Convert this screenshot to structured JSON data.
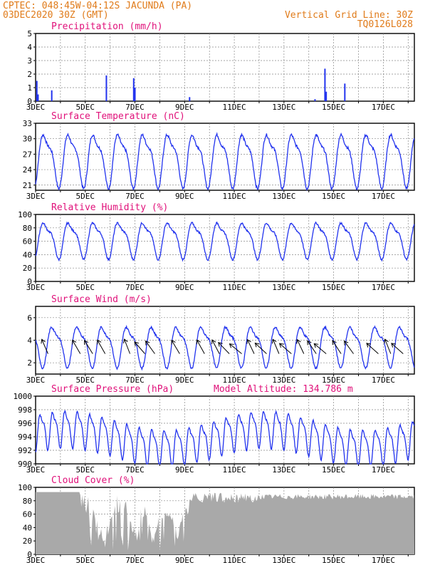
{
  "header": {
    "line1": "CPTEC:   048:45W-04:12S   JACUNDA (PA)",
    "line2": "03DEC2020 30Z (GMT)",
    "grid_note": "Vertical Grid Line: 30Z",
    "code": "TQ0126L028",
    "altitude": "Model Altitude: 134.786 m"
  },
  "colors": {
    "header": "#e07b1a",
    "title": "#e0117a",
    "line": "#2233ee",
    "cloud": "#a9a9a9",
    "arrow": "#000000"
  },
  "x_labels": [
    "3DEC",
    "5DEC",
    "7DEC",
    "9DEC",
    "11DEC",
    "13DEC",
    "15DEC",
    "17DEC"
  ],
  "chart_data": [
    {
      "type": "bar",
      "title": "Precipitation (mm/h)",
      "x_unit": "days since 3DEC",
      "ylim": [
        0,
        5
      ],
      "yticks": [
        "0",
        "1",
        "2",
        "3",
        "4",
        "5"
      ],
      "x": [
        0.05,
        0.1,
        0.65,
        2.85,
        3.95,
        4.0,
        6.2,
        11.25,
        11.65,
        11.7,
        12.45
      ],
      "values": [
        1.5,
        0.5,
        0.8,
        1.9,
        1.7,
        1.0,
        0.3,
        0.15,
        2.4,
        0.7,
        1.3
      ]
    },
    {
      "type": "line",
      "title": "Surface Temperature (nC)",
      "ylim": [
        20,
        33
      ],
      "yticks": [
        "21",
        "24",
        "27",
        "30",
        "33"
      ],
      "period": 1.0,
      "mean": 26.3,
      "amp": 4.6,
      "phase": 0.15
    },
    {
      "type": "line",
      "title": "Relative Humidity (%)",
      "ylim": [
        0,
        100
      ],
      "yticks": [
        "0",
        "20",
        "40",
        "60",
        "80",
        "100"
      ],
      "period": 1.0,
      "mean": 64,
      "amp": 24,
      "phase": 0.15
    },
    {
      "type": "line",
      "title": "Surface Wind (m/s)",
      "ylim": [
        1,
        7
      ],
      "yticks": [
        "2",
        "4",
        "6"
      ],
      "period": 1.0,
      "mean": 3.6,
      "amp": 1.6,
      "phase": 0.5,
      "arrow_days": [
        0.5,
        1.8,
        2.3,
        2.8,
        3.8,
        4.4,
        4.8,
        5.8,
        6.8,
        7.4,
        7.8,
        8.3,
        8.8,
        9.3,
        9.8,
        10.3,
        10.8,
        11.3,
        11.7,
        12.3,
        12.8,
        13.8,
        14.3,
        14.8
      ]
    },
    {
      "type": "line",
      "title": "Surface Pressure (hPa)",
      "ylim": [
        990,
        1000
      ],
      "yticks": [
        "990",
        "992",
        "994",
        "996",
        "998",
        "1000"
      ],
      "period": 0.5,
      "mean": 994.4,
      "amp": 2.4,
      "phase": 0.1
    },
    {
      "type": "area",
      "title": "Cloud Cover (%)",
      "ylim": [
        0,
        100
      ],
      "yticks": [
        "0",
        "20",
        "40",
        "60",
        "80",
        "100"
      ]
    }
  ]
}
